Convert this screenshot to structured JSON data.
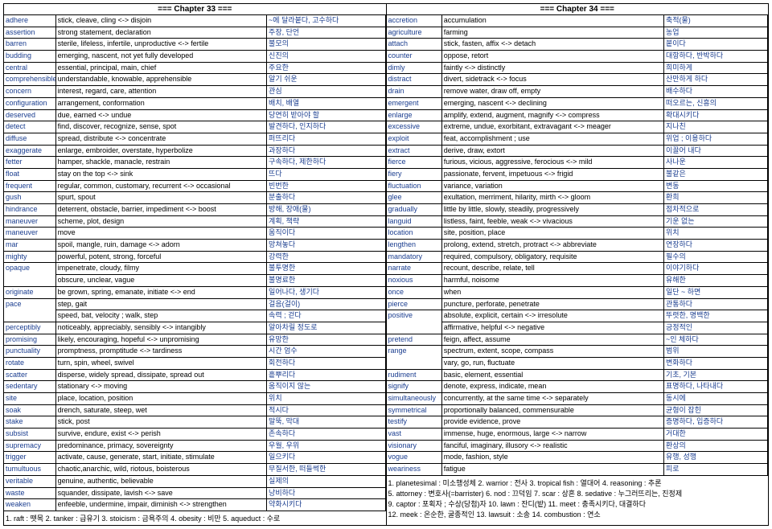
{
  "left": {
    "header": "=== Chapter 33 ===",
    "rows": [
      [
        "adhere",
        "stick, cleave, cling <-> disjoin",
        "~에 달라붙다, 고수하다"
      ],
      [
        "assertion",
        "strong statement, declaration",
        "주장, 단언"
      ],
      [
        "barren",
        "sterile, lifeless, infertile, unproductive <-> fertile",
        "불모의"
      ],
      [
        "budding",
        "emerging, nascent, not yet fully developed",
        "신진의"
      ],
      [
        "central",
        "essential, principal, main, chief",
        "주요한"
      ],
      [
        "comprehensible",
        "understandable, knowable, apprehensible",
        "알기 쉬운"
      ],
      [
        "concern",
        "interest, regard, care, attention",
        "관심"
      ],
      [
        "configuration",
        "arrangement, conformation",
        "배치, 배열"
      ],
      [
        "deserved",
        "due, earned <-> undue",
        "당연히 받아야 할"
      ],
      [
        "detect",
        "find, discover, recognize, sense, spot",
        "발견하다, 인지하다"
      ],
      [
        "diffuse",
        "spread, distribute <-> concentrate",
        "퍼뜨리다"
      ],
      [
        "exaggerate",
        "enlarge, embroider, overstate, hyperbolize",
        "과장하다"
      ],
      [
        "fetter",
        "hamper, shackle, manacle, restrain",
        "구속하다, 제한하다"
      ],
      [
        "float",
        "stay on the top <-> sink",
        "뜨다"
      ],
      [
        "frequent",
        "regular, common, customary, recurrent <-> occasional",
        "빈번한"
      ],
      [
        "gush",
        "spurt, spout",
        "분출하다"
      ],
      [
        "hindrance",
        "deterrent, obstacle, barrier, impediment <-> boost",
        "방해, 장애(물)"
      ],
      [
        "maneuver",
        "scheme, plot, design",
        "계획, 책략"
      ],
      [
        "maneuver",
        "move",
        "움직이다"
      ],
      [
        "mar",
        "spoil, mangle, ruin, damage <-> adorn",
        "망쳐놓다"
      ],
      [
        "mighty",
        "powerful, potent, strong, forceful",
        "강력한"
      ],
      [
        "opaque",
        "impenetrate, cloudy, filmy",
        "불투명한",
        "rowspan"
      ],
      [
        "",
        "obscure, unclear, vague",
        "불명료한"
      ],
      [
        "originate",
        "be grown, spring, emanate, initiate <-> end",
        "일어나다, 생기다"
      ],
      [
        "pace",
        "step, gait",
        "걸음(걸이)",
        "rowspan"
      ],
      [
        "",
        "speed, bat, velocity ; walk, step",
        "속력 ; 걷다"
      ],
      [
        "perceptibly",
        "noticeably, appreciably, sensibly <-> intangibly",
        "알아차릴 정도로"
      ],
      [
        "promising",
        "likely, encouraging, hopeful <-> unpromising",
        "유망한"
      ],
      [
        "punctuality",
        "promptness, promptitude <-> tardiness",
        "시간 엄수"
      ],
      [
        "rotate",
        "turn, spin, wheel, swivel",
        "회전하다"
      ],
      [
        "scatter",
        "disperse, widely spread, dissipate, spread out",
        "흩뿌리다"
      ],
      [
        "sedentary",
        "stationary <-> moving",
        "움직이지 않는"
      ],
      [
        "site",
        "place, location, position",
        "위치"
      ],
      [
        "soak",
        "drench, saturate, steep, wet",
        "적시다"
      ],
      [
        "stake",
        "stick, post",
        "말뚝, 막대"
      ],
      [
        "subsist",
        "survive, endure, exist <-> perish",
        "존속하다"
      ],
      [
        "supremacy",
        "predominance, primacy, sovereignty",
        "우월, 우위"
      ],
      [
        "trigger",
        "activate, cause, generate, start, initiate, stimulate",
        "일으키다"
      ],
      [
        "tumultuous",
        "chaotic,anarchic, wild, riotous, boisterous",
        "무질서한, 떠들썩한"
      ],
      [
        "veritable",
        "genuine, authentic, believable",
        "실제의"
      ],
      [
        "waste",
        "squander, dissipate, lavish <-> save",
        "낭비하다"
      ],
      [
        "weaken",
        "enfeeble, undermine, impair, diminish <-> strengthen",
        "약화시키다"
      ]
    ],
    "footer": "1. raft : 뗏목   2. tanker : 급유기   3. stoicism : 금욕주의   4. obesity : 비만   5. aqueduct : 수로"
  },
  "right": {
    "header": "=== Chapter 34 ===",
    "rows": [
      [
        "accretion",
        "accumulation",
        "축적(물)"
      ],
      [
        "agriculture",
        "farming",
        "농업"
      ],
      [
        "attach",
        "stick, fasten, affix <-> detach",
        "붙이다"
      ],
      [
        "counter",
        "oppose, retort",
        "대항하다, 반박하다"
      ],
      [
        "dimly",
        "faintly <-> distinctly",
        "희미하게"
      ],
      [
        "distract",
        "divert, sidetrack <-> focus",
        "산만하게 하다"
      ],
      [
        "drain",
        "remove water, draw off, empty",
        "배수하다"
      ],
      [
        "emergent",
        "emerging, nascent <-> declining",
        "떠오르는, 신흥의"
      ],
      [
        "enlarge",
        "amplify, extend, augment, magnify <-> compress",
        "확대시키다"
      ],
      [
        "excessive",
        "extreme, undue, exorbitant, extravagant <-> meager",
        "지나친"
      ],
      [
        "exploit",
        "feat, accomplishment ; use",
        "위업 ; 이용하다"
      ],
      [
        "extract",
        "derive, draw, extort",
        "이끌어 내다"
      ],
      [
        "fierce",
        "furious, vicious, aggressive, ferocious <-> mild",
        "사나운"
      ],
      [
        "fiery",
        "passionate, fervent, impetuous <-> frigid",
        "불같은"
      ],
      [
        "fluctuation",
        "variance, variation",
        "변동"
      ],
      [
        "glee",
        "exultation, merriment, hilarity, mirth <-> gloom",
        "환희"
      ],
      [
        "gradually",
        "little by little, slowly, steadily, progressively",
        "점차적으로"
      ],
      [
        "languid",
        "listless, faint, feeble, weak <-> vivacious",
        "기운 없는"
      ],
      [
        "location",
        "site, position, place",
        "위치"
      ],
      [
        "lengthen",
        "prolong, extend, stretch, protract <-> abbreviate",
        "연장하다"
      ],
      [
        "mandatory",
        "required, compulsory, obligatory, requisite",
        "필수의"
      ],
      [
        "narrate",
        "recount, describe, relate, tell",
        "이야기하다"
      ],
      [
        "noxious",
        "harmful, noisome",
        "유해한"
      ],
      [
        "once",
        "when",
        "일단 ~ 하면"
      ],
      [
        "pierce",
        "puncture, perforate, penetrate",
        "관통하다"
      ],
      [
        "positive",
        "absolute, explicit, certain <-> irresolute",
        "뚜렷한, 명백한",
        "rowspan"
      ],
      [
        "",
        "affirmative, helpful <-> negative",
        "긍정적인"
      ],
      [
        "pretend",
        "feign, affect, assume",
        "~인 체하다"
      ],
      [
        "range",
        "spectrum, extent, scope, compass",
        "범위",
        "rowspan"
      ],
      [
        "",
        "vary, go, run, fluctuate",
        "변화하다"
      ],
      [
        "rudiment",
        "basic, element, essential",
        "기초, 기본"
      ],
      [
        "signify",
        "denote, express, indicate, mean",
        "표명하다, 나타내다"
      ],
      [
        "simultaneously",
        "concurrently, at the same time <-> separately",
        "동시에"
      ],
      [
        "symmetrical",
        "proportionally balanced, commensurable",
        "균형이 잡힌"
      ],
      [
        "testify",
        "provide evidence, prove",
        "증명하다, 입증하다"
      ],
      [
        "vast",
        "immense, huge, enormous, large <-> narrow",
        "거대한"
      ],
      [
        "visionary",
        "fanciful, imaginary, illusory <-> realistic",
        "환상의"
      ],
      [
        "vogue",
        "mode, fashion, style",
        "유행, 성행"
      ],
      [
        "weariness",
        "fatigue",
        "피로"
      ]
    ],
    "footerA": "1. planetesimal : 미소행성체   2. warrior : 전사   3. tropical fish : 열대어   4. reasoning : 추론",
    "footerB": "5. attorney : 변호사(=barrister)   6. nod : 끄덕임   7. scar : 상흔   8. sedative : 누그러뜨리는, 진정제",
    "footerC": "9. captor : 포획자 ; 수상(당첨)자   10. lawn : 잔디(밭)   11. meet : 충족시키다, 대결하다",
    "footerD": "12. meek : 온순한, 굴종적인   13. lawsuit : 소송   14. combustion : 연소"
  }
}
